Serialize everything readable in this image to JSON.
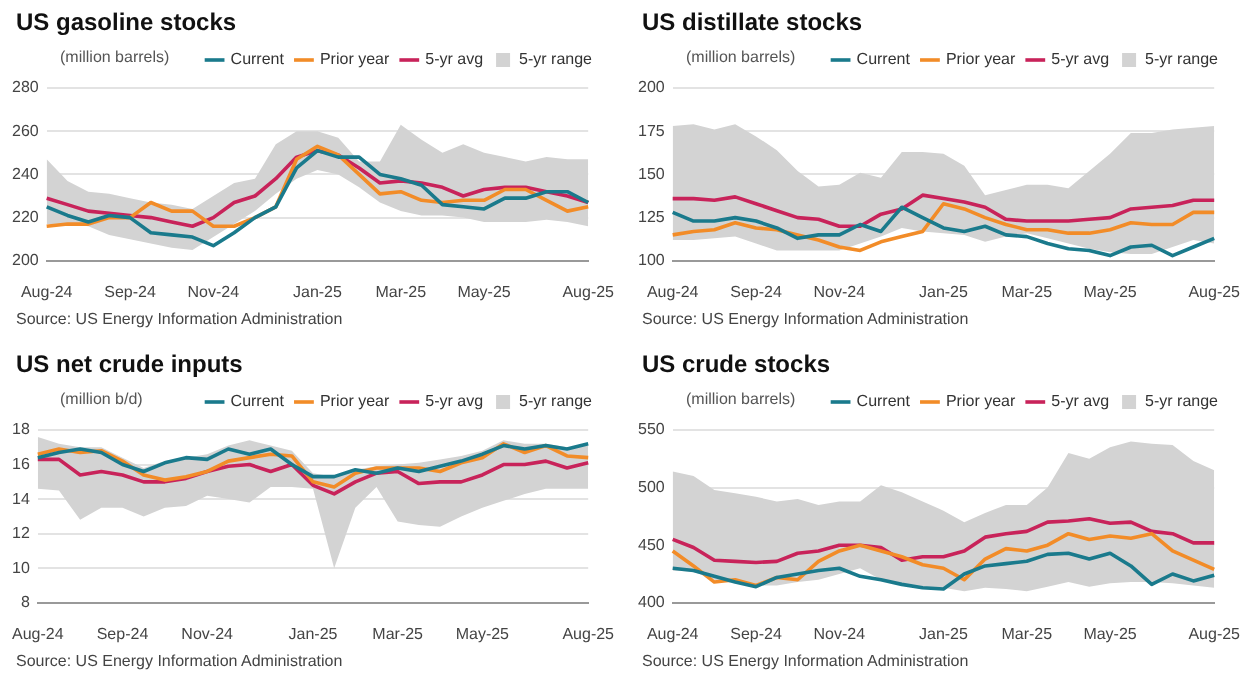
{
  "chart_data": [
    {
      "type": "line",
      "title": "US gasoline stocks",
      "ylabel": "(million barrels)",
      "annotations": [
        "Source: US Energy Information Administration"
      ],
      "categories": [
        "Aug-24",
        null,
        null,
        null,
        "Sep-24",
        null,
        null,
        null,
        "Nov-24",
        null,
        null,
        null,
        null,
        "Jan-25",
        null,
        null,
        null,
        "Mar-25",
        null,
        null,
        null,
        "May-25",
        null,
        null,
        null,
        null,
        "Aug-25"
      ],
      "ylim": [
        200,
        280
      ],
      "yticks": [
        200,
        220,
        240,
        260,
        280
      ],
      "grid": "y",
      "legend": "top right",
      "series": [
        {
          "name": "Current",
          "type": "line",
          "color": "#1a7a8c",
          "values": [
            225,
            221,
            218,
            221,
            220,
            213,
            212,
            211,
            207,
            213,
            220,
            225,
            243,
            251,
            248,
            248,
            240,
            238,
            235,
            226,
            225,
            224,
            229,
            229,
            232,
            232,
            227
          ]
        },
        {
          "name": "Prior year",
          "type": "line",
          "color": "#f28c28",
          "values": [
            216,
            217,
            217,
            220,
            220,
            227,
            223,
            223,
            216,
            216,
            220,
            225,
            247,
            253,
            249,
            240,
            231,
            232,
            228,
            227,
            228,
            228,
            233,
            233,
            228,
            223,
            225
          ]
        },
        {
          "name": "5-yr avg",
          "type": "line",
          "color": "#c8235a",
          "values": [
            229,
            226,
            223,
            222,
            221,
            220,
            218,
            216,
            220,
            227,
            230,
            238,
            248,
            251,
            249,
            243,
            236,
            237,
            236,
            234,
            230,
            233,
            234,
            234,
            232,
            230,
            227
          ]
        },
        {
          "name": "5-yr range",
          "type": "area",
          "color": "#d3d3d3",
          "values": [
            null,
            null,
            null,
            null,
            null,
            null,
            null,
            null,
            null,
            null,
            null,
            null,
            null,
            null,
            null,
            null,
            null,
            null,
            null,
            null,
            null,
            null,
            null,
            null,
            null,
            null,
            null
          ],
          "upper": [
            247,
            237,
            232,
            231,
            229,
            227,
            226,
            224,
            230,
            236,
            238,
            254,
            260,
            260,
            257,
            246,
            246,
            263,
            256,
            250,
            254,
            250,
            248,
            246,
            248,
            247,
            247
          ],
          "lower": [
            217,
            217,
            216,
            212,
            210,
            208,
            206,
            205,
            211,
            217,
            223,
            231,
            238,
            242,
            240,
            234,
            227,
            223,
            221,
            221,
            220,
            218,
            218,
            218,
            219,
            218,
            216
          ]
        }
      ]
    },
    {
      "type": "line",
      "title": "US distillate stocks",
      "ylabel": "(million barrels)",
      "annotations": [
        "Source: US Energy Information Administration"
      ],
      "categories": [
        "Aug-24",
        null,
        null,
        null,
        "Sep-24",
        null,
        null,
        null,
        "Nov-24",
        null,
        null,
        null,
        null,
        "Jan-25",
        null,
        null,
        null,
        "Mar-25",
        null,
        null,
        null,
        "May-25",
        null,
        null,
        null,
        null,
        "Aug-25"
      ],
      "ylim": [
        100,
        200
      ],
      "yticks": [
        100,
        125,
        150,
        175,
        200
      ],
      "grid": "y",
      "legend": "top right",
      "series": [
        {
          "name": "Current",
          "type": "line",
          "color": "#1a7a8c",
          "values": [
            128,
            123,
            123,
            125,
            123,
            119,
            113,
            115,
            115,
            121,
            117,
            131,
            125,
            119,
            117,
            120,
            115,
            114,
            110,
            107,
            106,
            103,
            108,
            109,
            103,
            108,
            113
          ]
        },
        {
          "name": "Prior year",
          "type": "line",
          "color": "#f28c28",
          "values": [
            115,
            117,
            118,
            122,
            119,
            118,
            115,
            112,
            108,
            106,
            111,
            114,
            117,
            133,
            130,
            125,
            121,
            118,
            118,
            116,
            116,
            118,
            122,
            121,
            121,
            128,
            128
          ]
        },
        {
          "name": "5-yr avg",
          "type": "line",
          "color": "#c8235a",
          "values": [
            136,
            136,
            135,
            137,
            133,
            129,
            125,
            124,
            120,
            120,
            127,
            130,
            138,
            136,
            134,
            131,
            124,
            123,
            123,
            123,
            124,
            125,
            130,
            131,
            132,
            135,
            135
          ]
        },
        {
          "name": "5-yr range",
          "type": "area",
          "color": "#d3d3d3",
          "values": [
            null,
            null,
            null,
            null,
            null,
            null,
            null,
            null,
            null,
            null,
            null,
            null,
            null,
            null,
            null,
            null,
            null,
            null,
            null,
            null,
            null,
            null,
            null,
            null,
            null,
            null,
            null
          ],
          "upper": [
            178,
            179,
            176,
            179,
            172,
            164,
            152,
            143,
            144,
            151,
            148,
            163,
            163,
            162,
            155,
            138,
            141,
            144,
            144,
            142,
            152,
            162,
            174,
            174,
            176,
            177,
            178
          ],
          "lower": [
            112,
            112,
            113,
            114,
            110,
            106,
            106,
            106,
            106,
            110,
            114,
            119,
            117,
            116,
            115,
            111,
            114,
            116,
            113,
            110,
            107,
            105,
            104,
            104,
            108,
            112,
            110
          ]
        }
      ]
    },
    {
      "type": "line",
      "title": "US net crude inputs",
      "ylabel": "(million b/d)",
      "annotations": [
        "Source: US Energy Information Administration"
      ],
      "categories": [
        "Aug-24",
        null,
        null,
        null,
        "Sep-24",
        null,
        null,
        null,
        "Nov-24",
        null,
        null,
        null,
        null,
        "Jan-25",
        null,
        null,
        null,
        "Mar-25",
        null,
        null,
        null,
        "May-25",
        null,
        null,
        null,
        null,
        "Aug-25"
      ],
      "ylim": [
        8,
        18
      ],
      "yticks": [
        8,
        10,
        12,
        14,
        16,
        18
      ],
      "grid": "y",
      "legend": "top right",
      "series": [
        {
          "name": "Current",
          "type": "line",
          "color": "#1a7a8c",
          "values": [
            16.4,
            16.7,
            16.9,
            16.7,
            16.0,
            15.6,
            16.1,
            16.4,
            16.3,
            16.9,
            16.6,
            16.9,
            16.0,
            15.3,
            15.3,
            15.7,
            15.5,
            15.8,
            15.6,
            15.9,
            16.2,
            16.6,
            17.1,
            16.9,
            17.1,
            16.9,
            17.2
          ]
        },
        {
          "name": "Prior year",
          "type": "line",
          "color": "#f28c28",
          "values": [
            16.6,
            16.9,
            16.7,
            16.8,
            16.2,
            15.4,
            15.1,
            15.3,
            15.6,
            16.2,
            16.4,
            16.6,
            16.5,
            15.0,
            14.7,
            15.5,
            15.8,
            15.8,
            15.8,
            15.6,
            16.1,
            16.4,
            17.2,
            16.7,
            17.1,
            16.5,
            16.4
          ]
        },
        {
          "name": "5-yr avg",
          "type": "line",
          "color": "#c8235a",
          "values": [
            16.3,
            16.3,
            15.4,
            15.6,
            15.4,
            15.0,
            15.0,
            15.2,
            15.6,
            15.9,
            16.0,
            15.6,
            16.0,
            14.8,
            14.3,
            15.0,
            15.5,
            15.6,
            14.9,
            15.0,
            15.0,
            15.4,
            16.0,
            16.0,
            16.2,
            15.8,
            16.1
          ]
        },
        {
          "name": "5-yr range",
          "type": "area",
          "color": "#d3d3d3",
          "values": [
            null,
            null,
            null,
            null,
            null,
            null,
            null,
            null,
            null,
            null,
            null,
            null,
            null,
            null,
            null,
            null,
            null,
            null,
            null,
            null,
            null,
            null,
            null,
            null,
            null,
            null,
            null
          ],
          "upper": [
            17.6,
            17.2,
            17.0,
            17.0,
            16.4,
            15.8,
            16.2,
            16.4,
            16.6,
            17.1,
            17.4,
            17.1,
            16.8,
            15.5,
            15.3,
            15.7,
            15.9,
            16.0,
            16.1,
            16.3,
            16.5,
            16.8,
            17.4,
            17.2,
            17.2,
            17.0,
            17.1
          ],
          "lower": [
            14.6,
            14.5,
            12.8,
            13.5,
            13.5,
            13.0,
            13.5,
            13.6,
            14.2,
            14.0,
            13.8,
            14.7,
            14.7,
            14.6,
            10.0,
            13.5,
            14.7,
            12.7,
            12.5,
            12.4,
            13.0,
            13.5,
            13.9,
            14.3,
            14.6,
            14.6,
            14.6
          ]
        }
      ]
    },
    {
      "type": "line",
      "title": "US crude stocks",
      "ylabel": "(million barrels)",
      "annotations": [
        "Source: US Energy Information Administration"
      ],
      "categories": [
        "Aug-24",
        null,
        null,
        null,
        "Sep-24",
        null,
        null,
        null,
        "Nov-24",
        null,
        null,
        null,
        null,
        "Jan-25",
        null,
        null,
        null,
        "Mar-25",
        null,
        null,
        null,
        "May-25",
        null,
        null,
        null,
        null,
        "Aug-25"
      ],
      "ylim": [
        400,
        550
      ],
      "yticks": [
        400,
        450,
        500,
        550
      ],
      "grid": "y",
      "legend": "top right",
      "series": [
        {
          "name": "Current",
          "type": "line",
          "color": "#1a7a8c",
          "values": [
            430,
            428,
            423,
            418,
            414,
            422,
            425,
            428,
            430,
            423,
            420,
            416,
            413,
            412,
            425,
            432,
            434,
            436,
            442,
            443,
            438,
            443,
            432,
            416,
            425,
            419,
            424
          ]
        },
        {
          "name": "Prior year",
          "type": "line",
          "color": "#f28c28",
          "values": [
            445,
            432,
            418,
            420,
            415,
            422,
            420,
            436,
            445,
            450,
            445,
            440,
            433,
            430,
            420,
            438,
            447,
            445,
            450,
            460,
            455,
            458,
            456,
            460,
            445,
            437,
            429
          ]
        },
        {
          "name": "5-yr avg",
          "type": "line",
          "color": "#c8235a",
          "values": [
            455,
            448,
            437,
            436,
            435,
            436,
            443,
            445,
            450,
            450,
            448,
            437,
            440,
            440,
            445,
            457,
            460,
            462,
            470,
            471,
            473,
            469,
            470,
            462,
            460,
            452,
            452
          ]
        },
        {
          "name": "5-yr range",
          "type": "area",
          "color": "#d3d3d3",
          "values": [
            null,
            null,
            null,
            null,
            null,
            null,
            null,
            null,
            null,
            null,
            null,
            null,
            null,
            null,
            null,
            null,
            null,
            null,
            null,
            null,
            null,
            null,
            null,
            null,
            null,
            null,
            null
          ],
          "upper": [
            514,
            510,
            498,
            495,
            492,
            488,
            490,
            485,
            488,
            488,
            502,
            496,
            488,
            480,
            470,
            478,
            485,
            485,
            500,
            530,
            525,
            535,
            540,
            538,
            537,
            523,
            515
          ],
          "lower": [
            428,
            427,
            420,
            417,
            415,
            415,
            418,
            420,
            425,
            430,
            420,
            415,
            412,
            413,
            410,
            413,
            412,
            410,
            414,
            418,
            414,
            417,
            418,
            418,
            417,
            415,
            413
          ]
        }
      ]
    }
  ]
}
